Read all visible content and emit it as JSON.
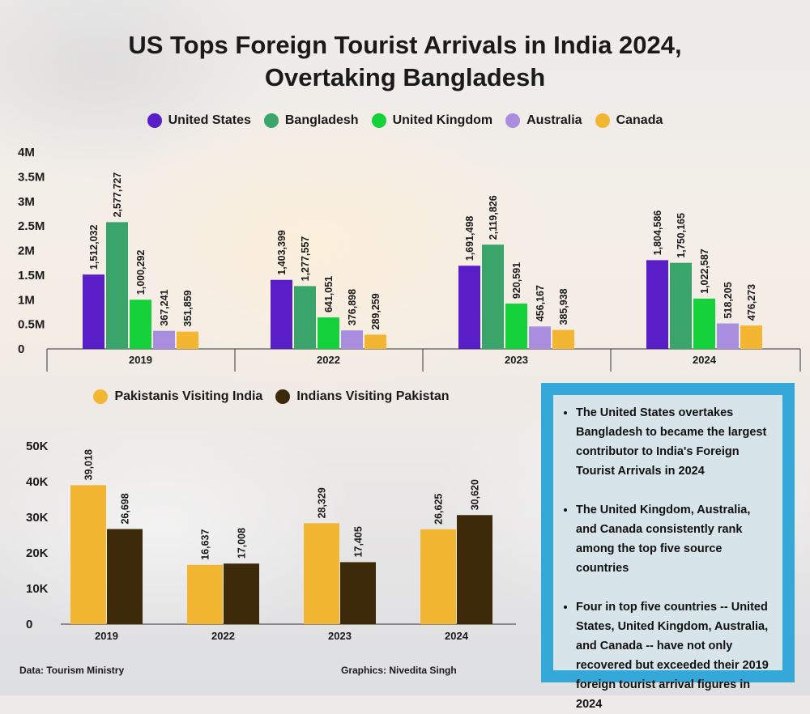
{
  "title_line1": "US Tops Foreign Tourist Arrivals in India 2024,",
  "title_line2": "Overtaking Bangladesh",
  "chart_data": [
    {
      "type": "bar",
      "categories": [
        "2019",
        "2022",
        "2023",
        "2024"
      ],
      "series": [
        {
          "name": "United States",
          "color": "#5a1ec8",
          "values": [
            1512032,
            1403399,
            1691498,
            1804586
          ]
        },
        {
          "name": "Bangladesh",
          "color": "#3aa56b",
          "values": [
            2577727,
            1277557,
            2119826,
            1750165
          ]
        },
        {
          "name": "United Kingdom",
          "color": "#15d23a",
          "values": [
            1000292,
            641051,
            920591,
            1022587
          ]
        },
        {
          "name": "Australia",
          "color": "#a98ee0",
          "values": [
            367241,
            376898,
            456167,
            518205
          ]
        },
        {
          "name": "Canada",
          "color": "#f2b632",
          "values": [
            351859,
            289259,
            385938,
            476273
          ]
        }
      ],
      "data_labels": [
        [
          "1,512,032",
          "2,577,727",
          "1,000,292",
          "367,241",
          "351,859"
        ],
        [
          "1,403,399",
          "1,277,557",
          "641,051",
          "376,898",
          "289,259"
        ],
        [
          "1,691,498",
          "2,119,826",
          "920,591",
          "456,167",
          "385,938"
        ],
        [
          "1,804,586",
          "1,750,165",
          "1,022,587",
          "518,205",
          "476,273"
        ]
      ],
      "y_ticks": [
        {
          "value": 0,
          "label": "0"
        },
        {
          "value": 500000,
          "label": "0.5M"
        },
        {
          "value": 1000000,
          "label": "1M"
        },
        {
          "value": 1500000,
          "label": "1.5M"
        },
        {
          "value": 2000000,
          "label": "2M"
        },
        {
          "value": 2500000,
          "label": "2.5M"
        },
        {
          "value": 3000000,
          "label": "3M"
        },
        {
          "value": 3500000,
          "label": "3.5M"
        },
        {
          "value": 4000000,
          "label": "4M"
        }
      ],
      "ylim": [
        0,
        4000000
      ],
      "legend_position": "top-center",
      "grid": false
    },
    {
      "type": "bar",
      "categories": [
        "2019",
        "2022",
        "2023",
        "2024"
      ],
      "series": [
        {
          "name": "Pakistanis Visiting India",
          "color": "#f2b632",
          "values": [
            39018,
            16637,
            28329,
            26625
          ]
        },
        {
          "name": "Indians Visiting Pakistan",
          "color": "#3d2a0a",
          "values": [
            26698,
            17008,
            17405,
            30620
          ]
        }
      ],
      "data_labels": [
        [
          "39,018",
          "26,698"
        ],
        [
          "16,637",
          "17,008"
        ],
        [
          "28,329",
          "17,405"
        ],
        [
          "26,625",
          "30,620"
        ]
      ],
      "y_ticks": [
        {
          "value": 0,
          "label": "0"
        },
        {
          "value": 10000,
          "label": "10K"
        },
        {
          "value": 20000,
          "label": "20K"
        },
        {
          "value": 30000,
          "label": "30K"
        },
        {
          "value": 40000,
          "label": "40K"
        },
        {
          "value": 50000,
          "label": "50K"
        }
      ],
      "ylim": [
        0,
        50000
      ],
      "legend_position": "top-center",
      "grid": false
    }
  ],
  "notes": [
    "The  United States overtakes Bangladesh to became the largest contributor to India's Foreign Tourist Arrivals in 2024",
    "The United Kingdom, Australia, and Canada consistently rank among the top five source countries",
    "Four in top five countries -- United States, United Kingdom, Australia, and Canada -- have not only recovered but exceeded their 2019 foreign tourist arrival  figures in 2024"
  ],
  "footer": {
    "source": "Data: Tourism Ministry",
    "credit": "Graphics: Nivedita Singh"
  }
}
